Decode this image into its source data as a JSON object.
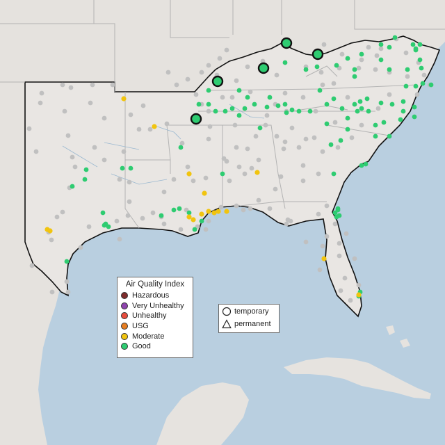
{
  "map": {
    "region": "Southeastern United States",
    "colors": {
      "ocean": "#b9cfe0",
      "land": "#e7e4e1",
      "land_outside": "#ddd9d3",
      "state_border": "#b3b3b3",
      "region_border": "#111111"
    }
  },
  "aqi_legend": {
    "title": "Air Quality Index",
    "items": [
      {
        "label": "Hazardous",
        "color": "#7e2b2b"
      },
      {
        "label": "Very Unhealthy",
        "color": "#8e44ad"
      },
      {
        "label": "Unhealthy",
        "color": "#e74c3c"
      },
      {
        "label": "USG",
        "color": "#e67e22"
      },
      {
        "label": "Moderate",
        "color": "#f1c40f"
      },
      {
        "label": "Good",
        "color": "#2ecc71"
      }
    ]
  },
  "type_legend": {
    "items": [
      {
        "label": "temporary",
        "icon": "circle-outline-icon"
      },
      {
        "label": "permanent",
        "icon": "triangle-outline-icon"
      }
    ]
  },
  "monitors": {
    "colors": {
      "good": "#2ecc71",
      "moderate": "#f1c40f",
      "no_data": "#c0c0c0"
    }
  }
}
